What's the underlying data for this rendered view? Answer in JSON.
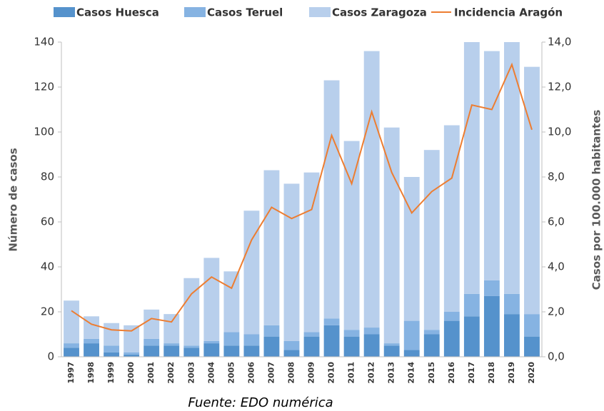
{
  "chart_data": {
    "type": "bar+line",
    "categories": [
      "1997",
      "1998",
      "1999",
      "2000",
      "2001",
      "2002",
      "2003",
      "2004",
      "2005",
      "2006",
      "2007",
      "2008",
      "2009",
      "2010",
      "2011",
      "2012",
      "2013",
      "2014",
      "2015",
      "2016",
      "2017",
      "2018",
      "2019",
      "2020"
    ],
    "series": [
      {
        "name": "Casos Huesca",
        "color": "#5592cc",
        "values": [
          4,
          6,
          2,
          1,
          5,
          5,
          4,
          6,
          5,
          5,
          9,
          3,
          9,
          14,
          9,
          10,
          5,
          3,
          10,
          16,
          18,
          27,
          19,
          9
        ]
      },
      {
        "name": "Casos Teruel",
        "color": "#86b3e2",
        "values": [
          2,
          2,
          3,
          1,
          3,
          1,
          1,
          1,
          6,
          5,
          5,
          4,
          2,
          3,
          3,
          3,
          1,
          13,
          2,
          4,
          10,
          7,
          9,
          10
        ]
      },
      {
        "name": "Casos Zaragoza",
        "color": "#b8cfec",
        "values": [
          19,
          10,
          10,
          12,
          13,
          13,
          30,
          37,
          27,
          55,
          69,
          70,
          71,
          106,
          84,
          123,
          96,
          64,
          80,
          83,
          112,
          102,
          112,
          110
        ]
      },
      {
        "name": "Incidencia Aragón",
        "color": "#ed7d31",
        "axis": "y2",
        "type": "line",
        "values": [
          2.05,
          1.45,
          1.2,
          1.15,
          1.7,
          1.55,
          2.8,
          3.55,
          3.05,
          5.2,
          6.65,
          6.15,
          6.55,
          9.85,
          7.7,
          10.9,
          8.2,
          6.4,
          7.35,
          7.95,
          11.2,
          11.0,
          13.0,
          10.1
        ]
      }
    ],
    "ylabel": "Número de casos",
    "y2label": "Casos por 100.000 habitantes",
    "source": "Fuente: EDO numérica",
    "ylim": [
      0,
      140
    ],
    "yticks": [
      0,
      20,
      40,
      60,
      80,
      100,
      120,
      140
    ],
    "y2lim": [
      0,
      14
    ],
    "y2ticks": [
      {
        "value": 0,
        "label": "0,0"
      },
      {
        "value": 2,
        "label": "2,0"
      },
      {
        "value": 4,
        "label": "4,0"
      },
      {
        "value": 6,
        "label": "6,0"
      },
      {
        "value": 8,
        "label": "8,0"
      },
      {
        "value": 10,
        "label": "10,0"
      },
      {
        "value": 12,
        "label": "12,0"
      },
      {
        "value": 14,
        "label": "14,0"
      }
    ],
    "stacked": true,
    "grid": false,
    "legend": "top"
  }
}
